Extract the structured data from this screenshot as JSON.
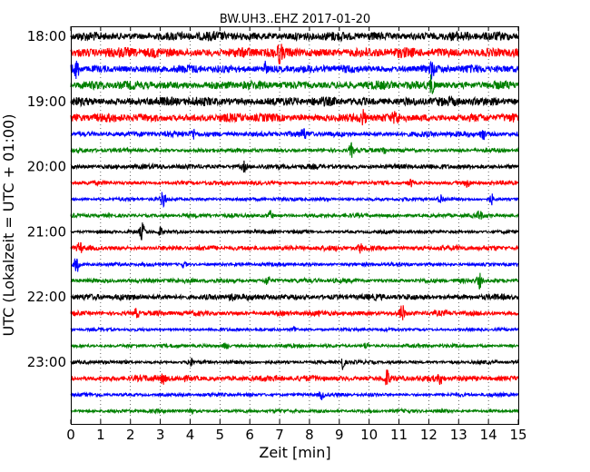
{
  "chart_data": {
    "type": "line",
    "title": "BW.UH3..EHZ 2017-01-20",
    "xlabel": "Zeit  [min]",
    "ylabel": "UTC (Lokalzeit = UTC + 01:00)",
    "xlim": [
      0,
      15
    ],
    "x_ticks": [
      "0",
      "1",
      "2",
      "3",
      "4",
      "5",
      "6",
      "7",
      "8",
      "9",
      "10",
      "11",
      "12",
      "13",
      "14",
      "15"
    ],
    "y_ticks": [
      "18:00",
      "19:00",
      "20:00",
      "21:00",
      "22:00",
      "23:00"
    ],
    "y_tick_rows": [
      0,
      4,
      8,
      12,
      16,
      20
    ],
    "grid": "vertical dotted at each minute",
    "colors": [
      "#000000",
      "#ff0000",
      "#0000ff",
      "#008000"
    ],
    "traces": [
      {
        "start": "18:00",
        "color": "black",
        "amplitude": 0.9,
        "events": []
      },
      {
        "start": "18:15",
        "color": "red",
        "amplitude": 1.0,
        "events": [
          {
            "t": 7.0,
            "a": 1.3
          }
        ]
      },
      {
        "start": "18:30",
        "color": "blue",
        "amplitude": 0.8,
        "events": [
          {
            "t": 0.2,
            "a": 1.4
          },
          {
            "t": 6.5,
            "a": 1.1
          },
          {
            "t": 12.1,
            "a": 1.2
          }
        ]
      },
      {
        "start": "18:45",
        "color": "green",
        "amplitude": 0.85,
        "events": [
          {
            "t": 12.1,
            "a": 1.6
          }
        ]
      },
      {
        "start": "19:00",
        "color": "black",
        "amplitude": 0.9,
        "events": []
      },
      {
        "start": "19:15",
        "color": "red",
        "amplitude": 0.85,
        "events": [
          {
            "t": 9.8,
            "a": 1.0
          },
          {
            "t": 10.9,
            "a": 0.9
          }
        ]
      },
      {
        "start": "19:30",
        "color": "blue",
        "amplitude": 0.55,
        "events": [
          {
            "t": 4.1,
            "a": 0.9
          },
          {
            "t": 7.8,
            "a": 0.9
          },
          {
            "t": 13.8,
            "a": 1.2
          }
        ]
      },
      {
        "start": "19:45",
        "color": "green",
        "amplitude": 0.4,
        "events": [
          {
            "t": 9.4,
            "a": 1.2
          },
          {
            "t": 10.5,
            "a": 0.7
          }
        ]
      },
      {
        "start": "20:00",
        "color": "black",
        "amplitude": 0.5,
        "events": [
          {
            "t": 5.8,
            "a": 0.8
          }
        ]
      },
      {
        "start": "20:15",
        "color": "red",
        "amplitude": 0.4,
        "events": [
          {
            "t": 11.4,
            "a": 0.7
          },
          {
            "t": 13.3,
            "a": 0.6
          }
        ]
      },
      {
        "start": "20:30",
        "color": "blue",
        "amplitude": 0.35,
        "events": [
          {
            "t": 3.1,
            "a": 1.4
          },
          {
            "t": 12.4,
            "a": 0.8
          },
          {
            "t": 14.1,
            "a": 0.9
          }
        ]
      },
      {
        "start": "20:45",
        "color": "green",
        "amplitude": 0.4,
        "events": [
          {
            "t": 6.7,
            "a": 0.8
          },
          {
            "t": 13.7,
            "a": 0.8
          }
        ]
      },
      {
        "start": "21:00",
        "color": "black",
        "amplitude": 0.35,
        "events": [
          {
            "t": 2.4,
            "a": 1.4
          },
          {
            "t": 3.0,
            "a": 0.8
          }
        ]
      },
      {
        "start": "21:15",
        "color": "red",
        "amplitude": 0.5,
        "events": [
          {
            "t": 0.3,
            "a": 0.8
          },
          {
            "t": 9.7,
            "a": 0.7
          }
        ]
      },
      {
        "start": "21:30",
        "color": "blue",
        "amplitude": 0.35,
        "events": [
          {
            "t": 0.2,
            "a": 1.6
          },
          {
            "t": 3.8,
            "a": 0.6
          }
        ]
      },
      {
        "start": "21:45",
        "color": "green",
        "amplitude": 0.45,
        "events": [
          {
            "t": 6.6,
            "a": 0.8
          },
          {
            "t": 13.7,
            "a": 1.2
          }
        ]
      },
      {
        "start": "22:00",
        "color": "black",
        "amplitude": 0.6,
        "events": [
          {
            "t": 5.4,
            "a": 0.8
          }
        ]
      },
      {
        "start": "22:15",
        "color": "red",
        "amplitude": 0.5,
        "events": [
          {
            "t": 2.2,
            "a": 0.8
          },
          {
            "t": 11.1,
            "a": 1.5
          }
        ]
      },
      {
        "start": "22:30",
        "color": "blue",
        "amplitude": 0.3,
        "events": [
          {
            "t": 7.5,
            "a": 0.6
          }
        ]
      },
      {
        "start": "22:45",
        "color": "green",
        "amplitude": 0.35,
        "events": [
          {
            "t": 5.2,
            "a": 0.7
          },
          {
            "t": 9.9,
            "a": 0.6
          }
        ]
      },
      {
        "start": "23:00",
        "color": "black",
        "amplitude": 0.35,
        "events": [
          {
            "t": 4.0,
            "a": 0.9
          },
          {
            "t": 9.1,
            "a": 1.4
          }
        ]
      },
      {
        "start": "23:15",
        "color": "red",
        "amplitude": 0.6,
        "events": [
          {
            "t": 3.1,
            "a": 1.0
          },
          {
            "t": 10.6,
            "a": 1.4
          },
          {
            "t": 12.4,
            "a": 0.8
          }
        ]
      },
      {
        "start": "23:30",
        "color": "blue",
        "amplitude": 0.35,
        "events": [
          {
            "t": 8.4,
            "a": 0.8
          }
        ]
      },
      {
        "start": "23:45",
        "color": "green",
        "amplitude": 0.35,
        "events": [
          {
            "t": 4.0,
            "a": 0.7
          }
        ]
      }
    ]
  }
}
